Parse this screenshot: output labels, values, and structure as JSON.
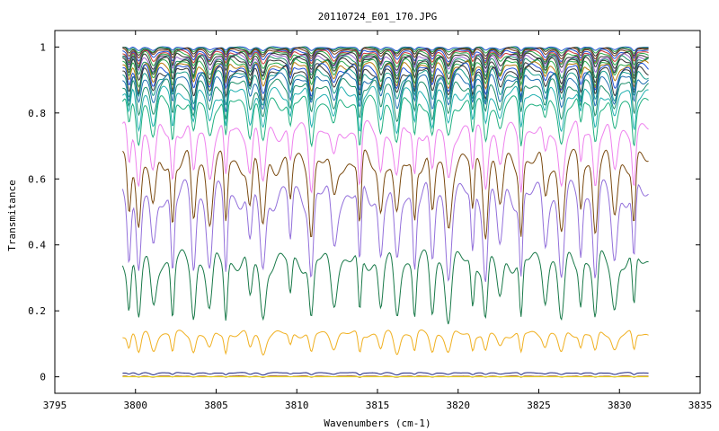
{
  "chart_data": {
    "type": "line",
    "title": "20110724_E01_170.JPG",
    "xlabel": "Wavenumbers (cm-1)",
    "ylabel": "Transmitance",
    "xlim": [
      3795,
      3835
    ],
    "ylim": [
      -0.05,
      1.05
    ],
    "xticks": [
      3795,
      3800,
      3805,
      3810,
      3815,
      3820,
      3825,
      3830,
      3835
    ],
    "yticks": [
      0,
      0.2,
      0.4,
      0.6,
      0.8,
      1
    ],
    "ytick_labels": [
      "0",
      "0.2",
      "0.4",
      "0.6",
      "0.8",
      "1"
    ],
    "grid": false,
    "legend": "none",
    "x_range": [
      3799.2,
      3831.8
    ],
    "absorption_lines": [
      3799.6,
      3800.2,
      3801.1,
      3802.3,
      3803.6,
      3804.6,
      3805.6,
      3807.1,
      3807.9,
      3809.6,
      3810.9,
      3812.3,
      3813.9,
      3815.2,
      3816.2,
      3817.3,
      3818.4,
      3819.4,
      3820.9,
      3821.7,
      3822.6,
      3823.9,
      3825.4,
      3826.4,
      3827.6,
      3828.5,
      3829.7,
      3830.9
    ],
    "series": [
      {
        "baseline": 0.999,
        "depth": 0.01,
        "color": "#1f4fd6"
      },
      {
        "baseline": 0.997,
        "depth": 0.015,
        "color": "#2aa84a"
      },
      {
        "baseline": 0.995,
        "depth": 0.02,
        "color": "#333333"
      },
      {
        "baseline": 0.992,
        "depth": 0.025,
        "color": "#7a3b10"
      },
      {
        "baseline": 0.988,
        "depth": 0.03,
        "color": "#1f4fd6"
      },
      {
        "baseline": 0.984,
        "depth": 0.035,
        "color": "#cc3333"
      },
      {
        "baseline": 0.98,
        "depth": 0.04,
        "color": "#2aa84a"
      },
      {
        "baseline": 0.975,
        "depth": 0.045,
        "color": "#333333"
      },
      {
        "baseline": 0.97,
        "depth": 0.05,
        "color": "#9966cc"
      },
      {
        "baseline": 0.965,
        "depth": 0.055,
        "color": "#1f8f6b"
      },
      {
        "baseline": 0.96,
        "depth": 0.06,
        "color": "#333333"
      },
      {
        "baseline": 0.953,
        "depth": 0.065,
        "color": "#2aa84a"
      },
      {
        "baseline": 0.945,
        "depth": 0.07,
        "color": "#b87a10"
      },
      {
        "baseline": 0.937,
        "depth": 0.075,
        "color": "#1f4fd6"
      },
      {
        "baseline": 0.928,
        "depth": 0.08,
        "color": "#333333"
      },
      {
        "baseline": 0.918,
        "depth": 0.085,
        "color": "#1a9c8c"
      },
      {
        "baseline": 0.905,
        "depth": 0.09,
        "color": "#1f6fb0"
      },
      {
        "baseline": 0.885,
        "depth": 0.1,
        "color": "#1f8f6b"
      },
      {
        "baseline": 0.86,
        "depth": 0.11,
        "color": "#20b0b0"
      },
      {
        "baseline": 0.83,
        "depth": 0.12,
        "color": "#20b080"
      },
      {
        "baseline": 0.745,
        "depth": 0.16,
        "color": "#ee82ee"
      },
      {
        "baseline": 0.65,
        "depth": 0.2,
        "color": "#7a4a10"
      },
      {
        "baseline": 0.55,
        "depth": 0.24,
        "color": "#9370db"
      },
      {
        "baseline": 0.35,
        "depth": 0.18,
        "color": "#1a7a4a"
      },
      {
        "baseline": 0.13,
        "depth": 0.06,
        "color": "#f0b020"
      },
      {
        "baseline": 0.012,
        "depth": 0.006,
        "color": "#1a237e"
      },
      {
        "baseline": 0.002,
        "depth": 0.003,
        "color": "#8b4513"
      },
      {
        "baseline": 0.0,
        "depth": 0.0,
        "color": "#f0e020"
      }
    ]
  }
}
